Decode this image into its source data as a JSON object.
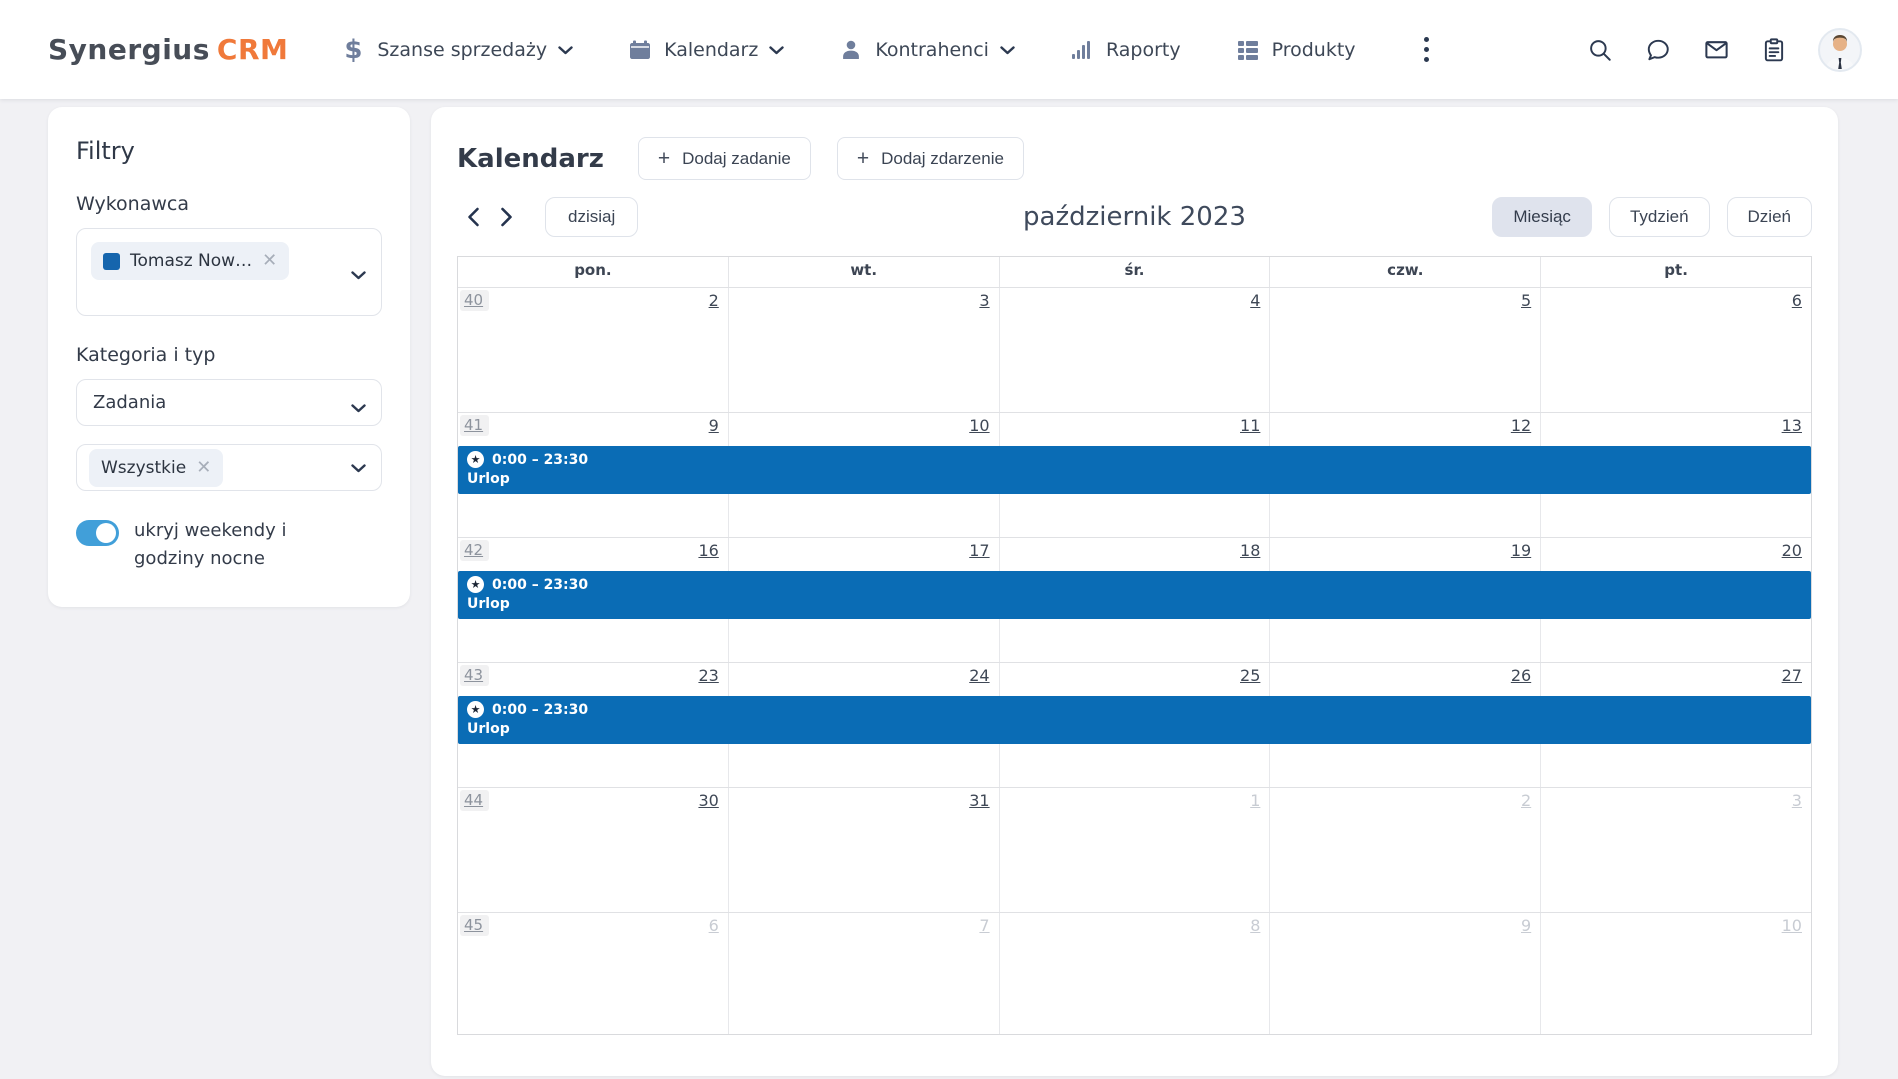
{
  "navbar": {
    "logo": {
      "part1": "Synergius",
      "part2": "CRM"
    },
    "items": [
      {
        "label": "Szanse sprzedaży",
        "icon": "dollar-icon",
        "caret": true
      },
      {
        "label": "Kalendarz",
        "icon": "calendar-icon",
        "caret": true
      },
      {
        "label": "Kontrahenci",
        "icon": "person-icon",
        "caret": true
      },
      {
        "label": "Raporty",
        "icon": "bar-chart-icon",
        "caret": false
      },
      {
        "label": "Produkty",
        "icon": "grid-list-icon",
        "caret": false
      }
    ],
    "right_icons": [
      "search-icon",
      "chat-icon",
      "mail-icon",
      "clipboard-icon",
      "user-avatar"
    ]
  },
  "sidebar": {
    "title": "Filtry",
    "wykonawca": {
      "label": "Wykonawca",
      "chip": "Tomasz Now…"
    },
    "kategoria": {
      "label": "Kategoria i typ",
      "selected_type": "Zadania",
      "chip": "Wszystkie"
    },
    "toggle_label": "ukryj weekendy i godziny nocne",
    "toggle_on": true
  },
  "main": {
    "title": "Kalendarz",
    "add_task_label": "Dodaj zadanie",
    "add_event_label": "Dodaj zdarzenie",
    "today_label": "dzisiaj",
    "month_title": "październik 2023",
    "views": [
      "Miesiąc",
      "Tydzień",
      "Dzień"
    ],
    "active_view": "Miesiąc"
  },
  "calendar": {
    "day_headers": [
      "pon.",
      "wt.",
      "śr.",
      "czw.",
      "pt."
    ],
    "event": {
      "time": "0:00 – 23:30",
      "title": "Urlop",
      "icon": "star-icon",
      "star_glyph": "★"
    },
    "weeks": [
      {
        "num": "40",
        "has_event": false,
        "days": [
          {
            "d": "2",
            "muted": false
          },
          {
            "d": "3",
            "muted": false
          },
          {
            "d": "4",
            "muted": false
          },
          {
            "d": "5",
            "muted": false
          },
          {
            "d": "6",
            "muted": false
          }
        ]
      },
      {
        "num": "41",
        "has_event": true,
        "days": [
          {
            "d": "9",
            "muted": false
          },
          {
            "d": "10",
            "muted": false
          },
          {
            "d": "11",
            "muted": false
          },
          {
            "d": "12",
            "muted": false
          },
          {
            "d": "13",
            "muted": false
          }
        ]
      },
      {
        "num": "42",
        "has_event": true,
        "days": [
          {
            "d": "16",
            "muted": false
          },
          {
            "d": "17",
            "muted": false
          },
          {
            "d": "18",
            "muted": false
          },
          {
            "d": "19",
            "muted": false
          },
          {
            "d": "20",
            "muted": false
          }
        ]
      },
      {
        "num": "43",
        "has_event": true,
        "days": [
          {
            "d": "23",
            "muted": false
          },
          {
            "d": "24",
            "muted": false
          },
          {
            "d": "25",
            "muted": false
          },
          {
            "d": "26",
            "muted": false
          },
          {
            "d": "27",
            "muted": false
          }
        ]
      },
      {
        "num": "44",
        "has_event": false,
        "days": [
          {
            "d": "30",
            "muted": false
          },
          {
            "d": "31",
            "muted": false
          },
          {
            "d": "1",
            "muted": true
          },
          {
            "d": "2",
            "muted": true
          },
          {
            "d": "3",
            "muted": true
          }
        ]
      },
      {
        "num": "45",
        "has_event": false,
        "days": [
          {
            "d": "6",
            "muted": true
          },
          {
            "d": "7",
            "muted": true
          },
          {
            "d": "8",
            "muted": true
          },
          {
            "d": "9",
            "muted": true
          },
          {
            "d": "10",
            "muted": true
          }
        ]
      }
    ]
  },
  "colors": {
    "event_blue": "#0a6cb5",
    "brand_orange": "#f0793a",
    "toggle_blue": "#419fd9",
    "chip_square_blue": "#1565ad"
  }
}
